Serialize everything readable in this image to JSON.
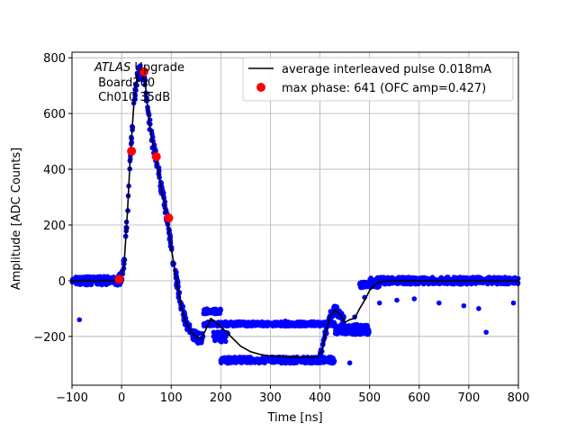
{
  "chart_data": {
    "type": "scatter",
    "xlabel": "Time [ns]",
    "ylabel": "Amplitude [ADC Counts]",
    "xlim": [
      -100,
      800
    ],
    "ylim": [
      -375,
      820
    ],
    "x_ticks": [
      -100,
      0,
      100,
      200,
      300,
      400,
      500,
      600,
      700,
      800
    ],
    "x_tick_labels": [
      "−100",
      "0",
      "100",
      "200",
      "300",
      "400",
      "500",
      "600",
      "700",
      "800"
    ],
    "y_ticks": [
      -200,
      0,
      200,
      400,
      600,
      800
    ],
    "y_tick_labels": [
      "−200",
      "0",
      "200",
      "400",
      "600",
      "800"
    ],
    "grid": true,
    "legend_placement": "top-right",
    "annotation": {
      "line1_italic": "ATLAS",
      "line1_rest": " Upgrade",
      "line2": " Board200",
      "line3": " Ch010 35dB"
    },
    "series": [
      {
        "name": "average interleaved pulse 0.018mA",
        "kind": "line",
        "color": "#000000",
        "x": [
          -100,
          -10,
          -2,
          5,
          12,
          18,
          25,
          32,
          40,
          48,
          55,
          62,
          70,
          78,
          85,
          92,
          100,
          108,
          115,
          122,
          130,
          140,
          150,
          160,
          170,
          180,
          190,
          200,
          220,
          240,
          260,
          280,
          300,
          320,
          340,
          360,
          380,
          395,
          405,
          410,
          420,
          430,
          440,
          450,
          460,
          470,
          480,
          490,
          500,
          510,
          520,
          540,
          560,
          600,
          700,
          800
        ],
        "y": [
          0,
          0,
          2,
          60,
          250,
          460,
          640,
          740,
          755,
          700,
          580,
          500,
          440,
          350,
          290,
          225,
          120,
          30,
          -40,
          -105,
          -150,
          -185,
          -200,
          -210,
          -175,
          -135,
          -150,
          -165,
          -200,
          -235,
          -255,
          -265,
          -270,
          -272,
          -275,
          -275,
          -275,
          -272,
          -250,
          -200,
          -130,
          -105,
          -120,
          -150,
          -140,
          -135,
          -100,
          -70,
          -35,
          -15,
          -5,
          0,
          0,
          0,
          0,
          0
        ]
      },
      {
        "name": "max phase: 641 (OFC amp=0.427)",
        "kind": "points",
        "color": "#ff0000",
        "x": [
          -5,
          20,
          45,
          70,
          95
        ],
        "y": [
          5,
          465,
          750,
          445,
          225
        ]
      }
    ],
    "blue_samples": {
      "color": "#0000ff",
      "description_free": true,
      "clusters": [
        {
          "x": [
            -100,
            -10
          ],
          "y_center": 0,
          "spread": 30
        },
        {
          "x": [
            -10,
            125
          ],
          "follow_curve": true,
          "spread": 45
        },
        {
          "x": [
            125,
            165
          ],
          "follow_curve": true,
          "spread": 40
        },
        {
          "x": [
            165,
            200
          ],
          "y_center": -110,
          "spread": 18
        },
        {
          "x": [
            165,
            430
          ],
          "y_center": -155,
          "spread": 15
        },
        {
          "x": [
            185,
            215
          ],
          "y_center": -200,
          "spread": 40
        },
        {
          "x": [
            200,
            430
          ],
          "y_center": -285,
          "spread": 22
        },
        {
          "x": [
            400,
            450
          ],
          "follow_curve": true,
          "spread": 35
        },
        {
          "x": [
            430,
            500
          ],
          "y_center": -175,
          "spread": 35
        },
        {
          "x": [
            480,
            520
          ],
          "y_center": -15,
          "spread": 20
        },
        {
          "x": [
            500,
            800
          ],
          "y_center": 0,
          "spread": 25
        }
      ],
      "outliers": {
        "x": [
          -85,
          470,
          490,
          520,
          555,
          590,
          640,
          690,
          720,
          735,
          790,
          330,
          460
        ],
        "y": [
          -140,
          -130,
          -60,
          -80,
          -70,
          -65,
          -80,
          -90,
          -100,
          -185,
          -80,
          -145,
          -295
        ]
      }
    }
  }
}
